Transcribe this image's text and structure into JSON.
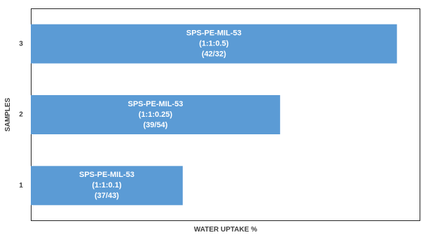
{
  "chart_data": {
    "type": "bar",
    "orientation": "horizontal",
    "title": "",
    "xlabel": "WATER UPTAKE %",
    "ylabel": "SAMPLES",
    "categories": [
      "1",
      "2",
      "3"
    ],
    "series": [
      {
        "values": [
          39,
          64,
          94
        ],
        "labels": [
          [
            "SPS-PE-MIL-53",
            "(1:1:0.1)",
            "(37/43)"
          ],
          [
            "SPS-PE-MIL-53",
            "(1:1:0.25)",
            "(39/54)"
          ],
          [
            "SPS-PE-MIL-53",
            "(1:1:0.5)",
            "(42/32)"
          ]
        ]
      }
    ],
    "xlim": [
      0,
      100
    ],
    "x_ticks_shown": false,
    "grid": false,
    "legend": "none",
    "colors": {
      "bar": "#5b9bd5",
      "label_text": "#ffffff",
      "axis_text": "#404040"
    }
  }
}
